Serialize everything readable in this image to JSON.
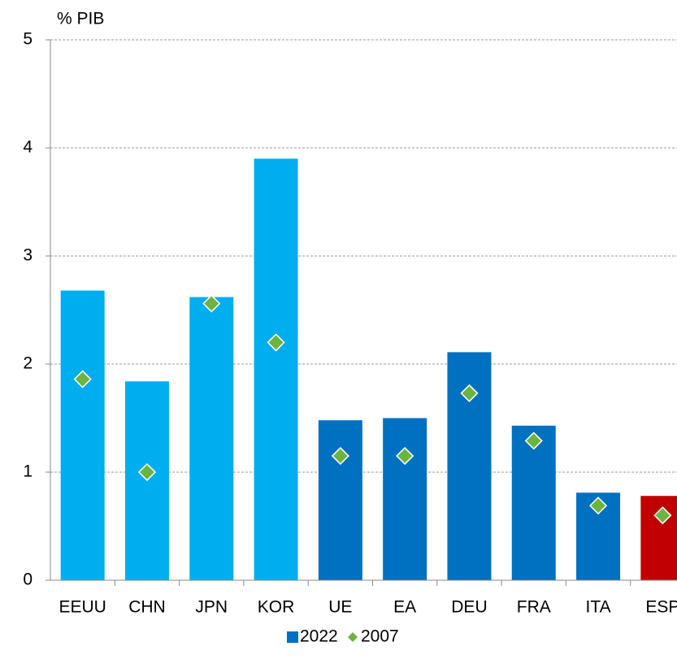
{
  "chart_data": {
    "type": "bar",
    "y_label": "% PIB",
    "categories": [
      "EEUU",
      "CHN",
      "JPN",
      "KOR",
      "UE",
      "EA",
      "DEU",
      "FRA",
      "ITA",
      "ESP"
    ],
    "series": [
      {
        "name": "2022",
        "type": "bar",
        "color": "#0070c0",
        "colors": [
          "#00aeef",
          "#00aeef",
          "#00aeef",
          "#00aeef",
          "#0070c0",
          "#0070c0",
          "#0070c0",
          "#0070c0",
          "#0070c0",
          "#c00000"
        ],
        "values": [
          2.68,
          1.84,
          2.62,
          3.9,
          1.48,
          1.5,
          2.11,
          1.43,
          0.81,
          0.78
        ]
      },
      {
        "name": "2007",
        "type": "scatter",
        "color": "#6db33f",
        "values": [
          1.86,
          1.0,
          2.56,
          2.2,
          1.15,
          1.15,
          1.73,
          1.29,
          0.69,
          0.6
        ]
      }
    ],
    "ylim": [
      0,
      5
    ],
    "yticks": [
      0,
      1,
      2,
      3,
      4,
      5
    ],
    "grid": true,
    "legend": "bottom"
  }
}
